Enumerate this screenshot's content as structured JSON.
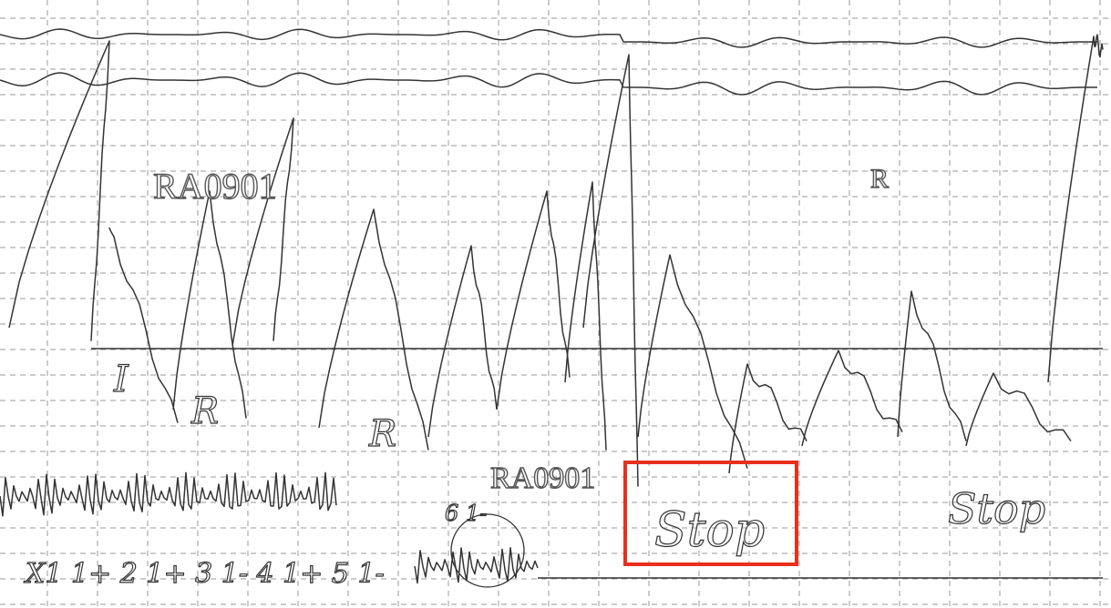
{
  "stamps": [
    "RA0901",
    "RA0901",
    "R"
  ],
  "marks": [
    "I",
    "R",
    "R"
  ],
  "notes": [
    "Stop",
    "Stop",
    "6 1-"
  ],
  "lead_labels": "X1 1+ 2 1+ 3 1- 4 1+ 5 1-"
}
